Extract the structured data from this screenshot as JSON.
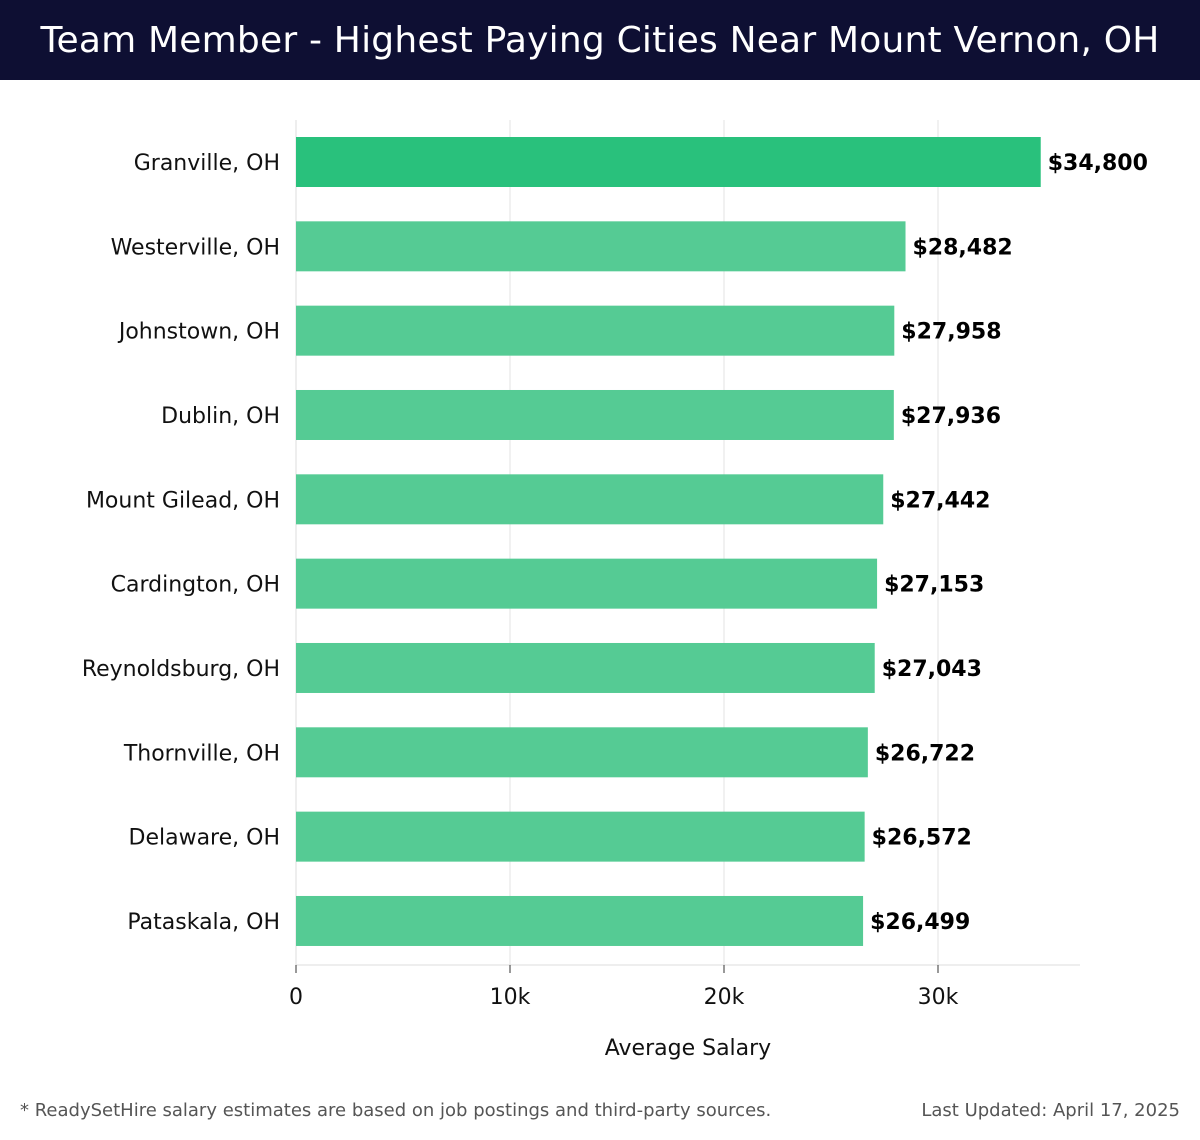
{
  "header": {
    "title": "Team Member - Highest Paying Cities Near Mount Vernon, OH"
  },
  "chart_data": {
    "type": "bar",
    "orientation": "horizontal",
    "title": "Team Member - Highest Paying Cities Near Mount Vernon, OH",
    "xlabel": "Average Salary",
    "ylabel": "",
    "categories": [
      "Granville, OH",
      "Westerville, OH",
      "Johnstown, OH",
      "Dublin, OH",
      "Mount Gilead, OH",
      "Cardington, OH",
      "Reynoldsburg, OH",
      "Thornville, OH",
      "Delaware, OH",
      "Pataskala, OH"
    ],
    "values": [
      34800,
      28482,
      27958,
      27936,
      27442,
      27153,
      27043,
      26722,
      26572,
      26499
    ],
    "value_labels": [
      "$34,800",
      "$28,482",
      "$27,958",
      "$27,936",
      "$27,442",
      "$27,153",
      "$27,043",
      "$26,722",
      "$26,572",
      "$26,499"
    ],
    "xticks": [
      0,
      10000,
      20000,
      30000
    ],
    "xtick_labels": [
      "0",
      "10k",
      "20k",
      "30k"
    ],
    "xlim": [
      0,
      36600
    ],
    "grid": true,
    "colors": {
      "highlight": "#29c17c",
      "bar": "#55cb94",
      "grid": "#e3e3e3",
      "header_bg": "#0e0f33"
    }
  },
  "footer": {
    "note": "* ReadySetHire salary estimates are based on job postings and third-party sources.",
    "updated": "Last Updated: April 17, 2025"
  }
}
